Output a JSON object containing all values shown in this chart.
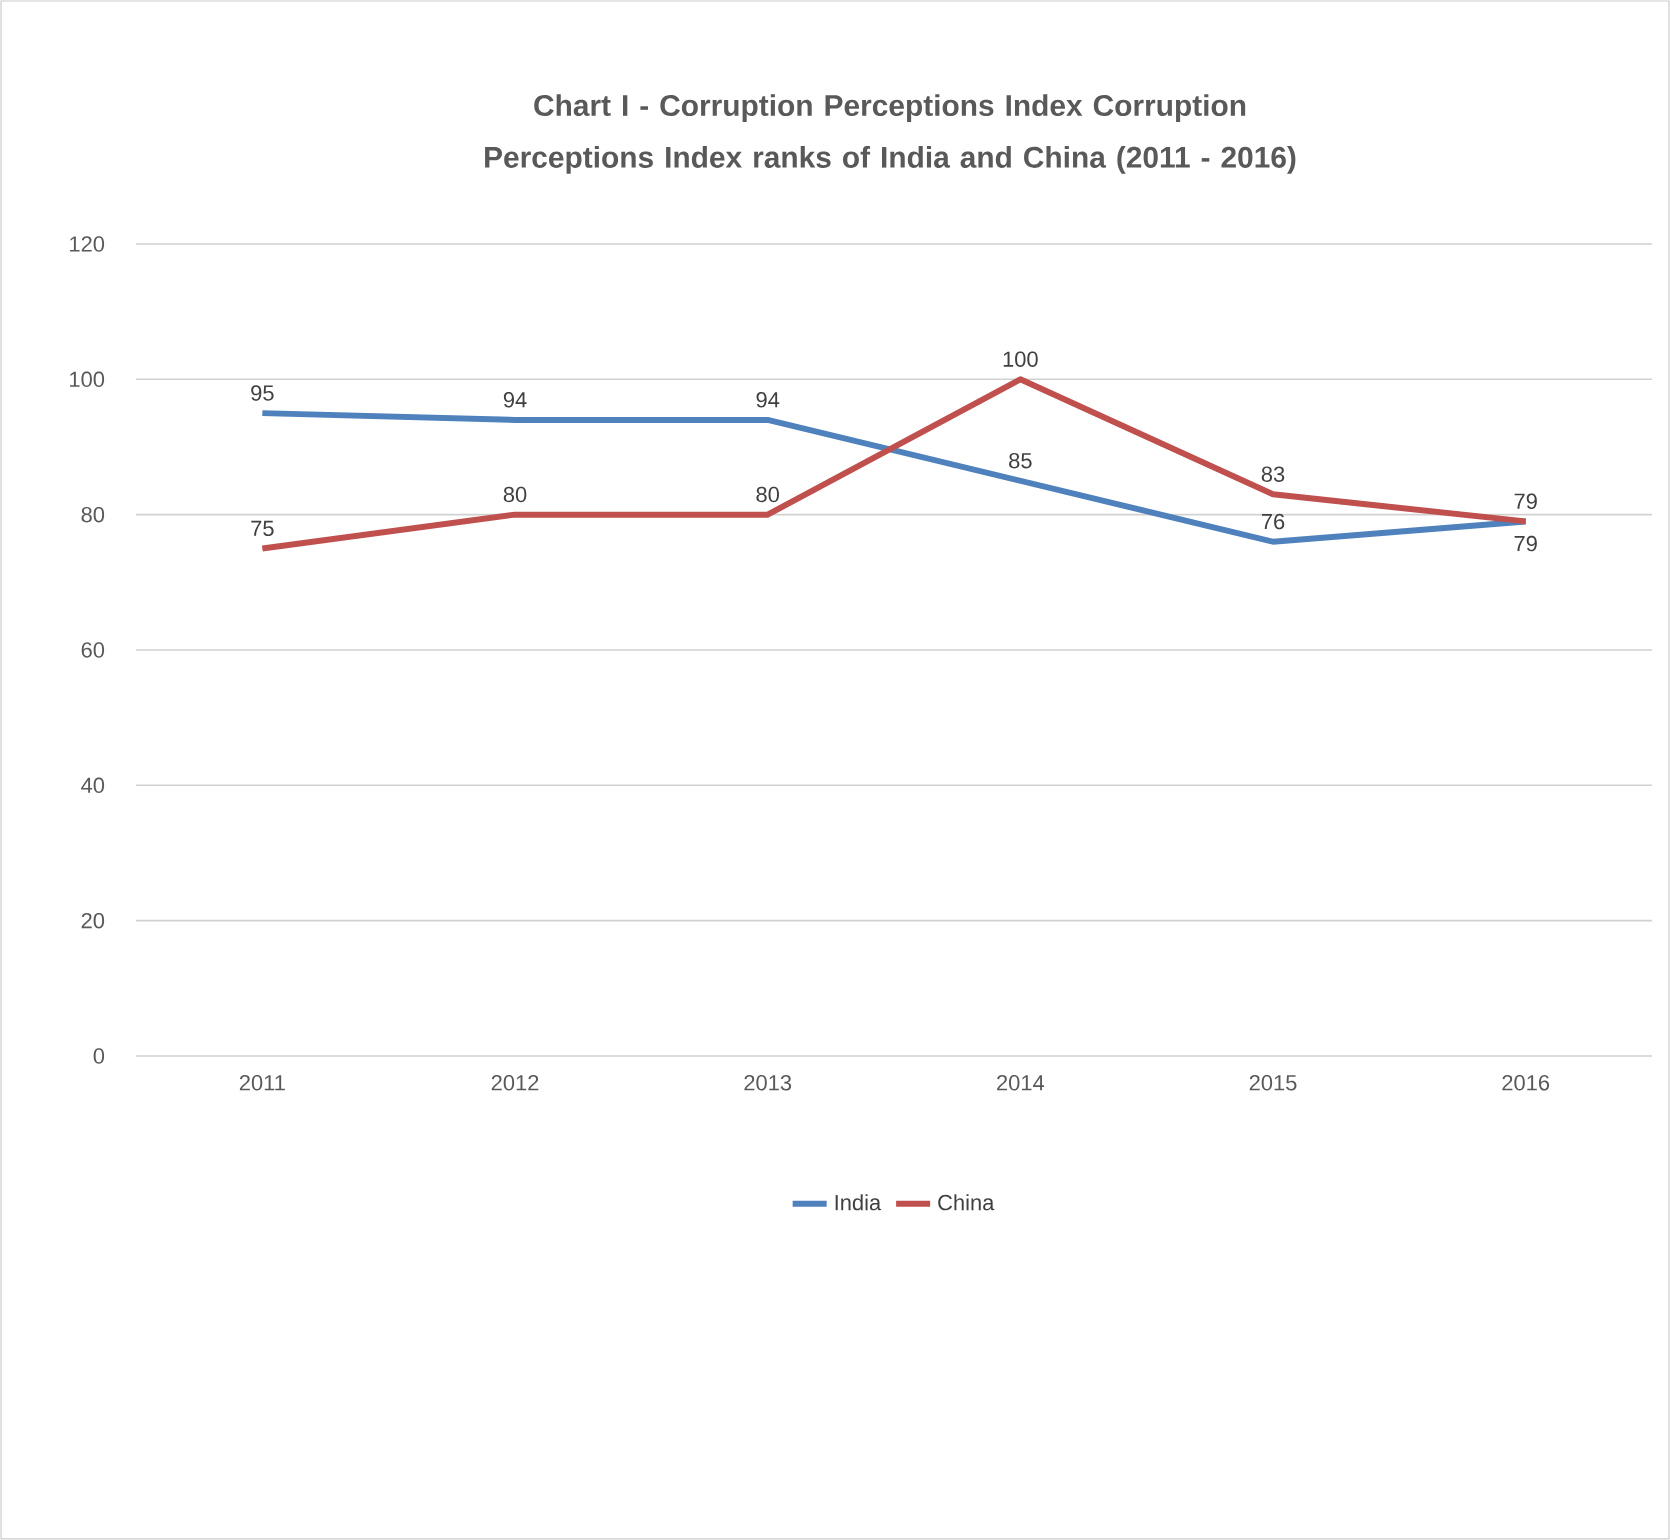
{
  "chart_data": {
    "type": "line",
    "title": "Chart I -    Corruption Perceptions Index Corruption Perceptions Index ranks of India and China (2011 - 2016)",
    "categories": [
      "2011",
      "2012",
      "2013",
      "2014",
      "2015",
      "2016"
    ],
    "series": [
      {
        "name": "India",
        "color": "#4f81bd",
        "values": [
          95,
          94,
          94,
          85,
          76,
          79
        ]
      },
      {
        "name": "China",
        "color": "#c0504d",
        "values": [
          75,
          80,
          80,
          100,
          83,
          79
        ]
      }
    ],
    "ylim": [
      0,
      120
    ],
    "yticks": [
      0,
      20,
      40,
      60,
      80,
      100,
      120
    ],
    "grid": "y",
    "legend": "bottom",
    "data_labels": true,
    "marker": "none",
    "line_style": "solid"
  }
}
